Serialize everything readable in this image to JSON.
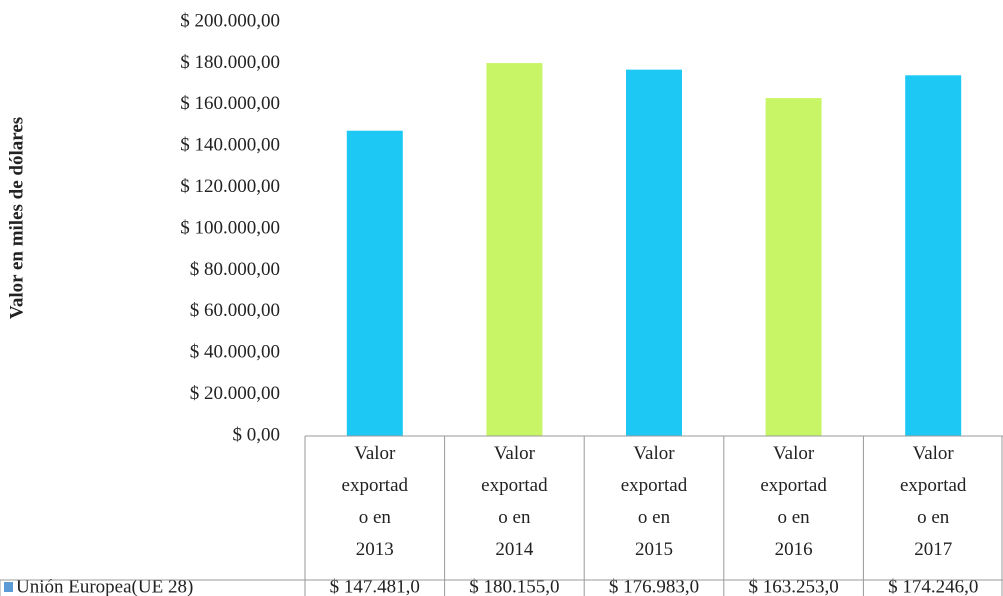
{
  "chart_data": {
    "type": "bar",
    "y_label": "Valor  en miles de dólares",
    "categories": [
      "Valor exportado en 2013",
      "Valor exportado en 2014",
      "Valor exportado en 2015",
      "Valor exportado en 2016",
      "Valor exportado en 2017"
    ],
    "series": [
      {
        "name": "Unión Europea(UE 28)",
        "color": "#5b9bd5",
        "colors": [
          "#1ec8f5",
          "#c8f566",
          "#1ec8f5",
          "#c8f566",
          "#1ec8f5"
        ],
        "values": [
          147481,
          180155,
          176983,
          163253,
          174246
        ],
        "value_labels": [
          "$ 147.481,0",
          "$ 180.155,0",
          "$ 176.983,0",
          "$ 163.253,0",
          "$ 174.246,0"
        ]
      }
    ],
    "ylim": [
      0,
      200000
    ],
    "yticks": [
      {
        "value": 0,
        "label": "$ 0,00"
      },
      {
        "value": 20000,
        "label": "$ 20.000,00"
      },
      {
        "value": 40000,
        "label": "$ 40.000,00"
      },
      {
        "value": 60000,
        "label": "$ 60.000,00"
      },
      {
        "value": 80000,
        "label": "$ 80.000,00"
      },
      {
        "value": 100000,
        "label": "$ 100.000,00"
      },
      {
        "value": 120000,
        "label": "$ 120.000,00"
      },
      {
        "value": 140000,
        "label": "$ 140.000,00"
      },
      {
        "value": 160000,
        "label": "$ 160.000,00"
      },
      {
        "value": 180000,
        "label": "$ 180.000,00"
      },
      {
        "value": 200000,
        "label": "$ 200.000,00"
      }
    ],
    "grid": false,
    "data_table": true
  }
}
